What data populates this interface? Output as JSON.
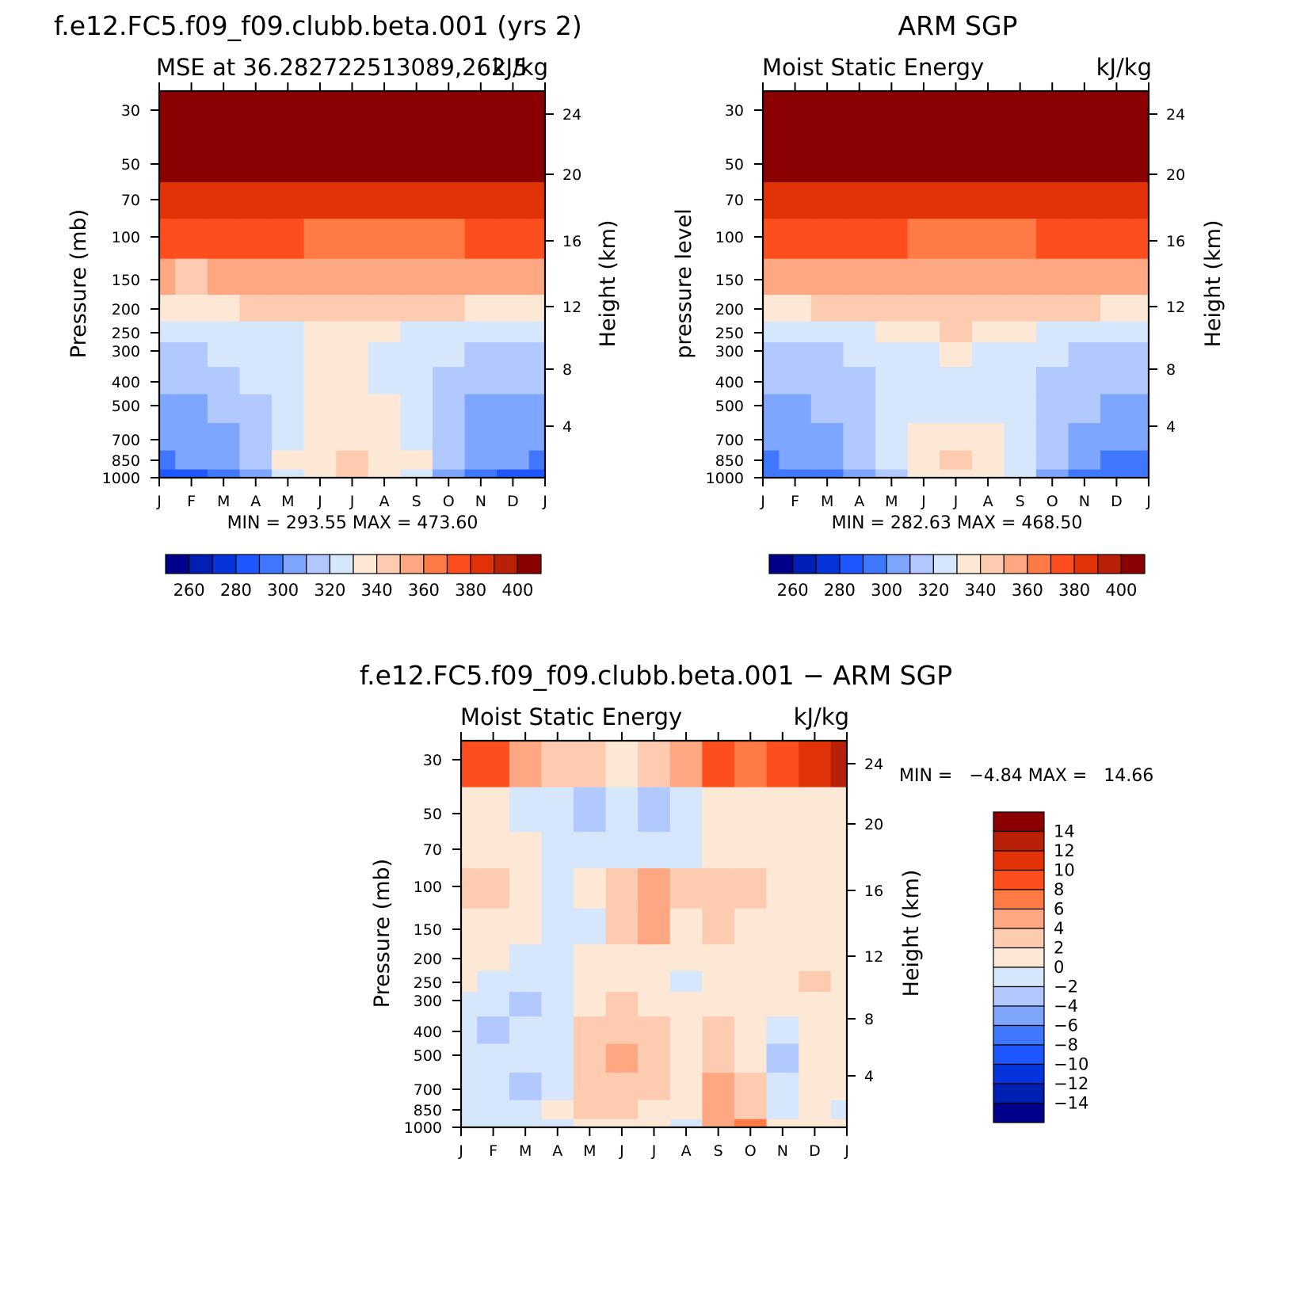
{
  "chart_data": [
    {
      "type": "heatmap",
      "panel": "model",
      "title": "f.e12.FC5.f09_f09.clubb.beta.001 (yrs 2)",
      "subtitle": "MSE at 36.282722513089,262.5",
      "units": "kJ/kg",
      "ylabel": "Pressure (mb)",
      "ylabel_right": "Height (km)",
      "x_ticks": [
        "J",
        "F",
        "M",
        "A",
        "M",
        "J",
        "J",
        "A",
        "S",
        "O",
        "N",
        "D",
        "J"
      ],
      "y_ticks": [
        "30",
        "50",
        "70",
        "100",
        "150",
        "200",
        "250",
        "300",
        "400",
        "500",
        "700",
        "850",
        "1000"
      ],
      "y_ticks_right": [
        "24",
        "20",
        "16",
        "12",
        "8",
        "4"
      ],
      "stats": "MIN = 293.55 MAX = 473.60",
      "colorbar_labels": [
        "260",
        "280",
        "300",
        "320",
        "340",
        "360",
        "380",
        "400"
      ],
      "pressure_levels": [
        1000,
        850,
        700,
        500,
        400,
        300,
        250,
        200,
        150,
        100,
        70,
        50,
        30
      ],
      "months": [
        "J",
        "F",
        "M",
        "A",
        "M",
        "J",
        "J",
        "A",
        "S",
        "O",
        "N",
        "D",
        "J"
      ],
      "values": [
        [
          280,
          285,
          290,
          300,
          328,
          338,
          342,
          336,
          328,
          304,
          298,
          288,
          282
        ],
        [
          298,
          300,
          302,
          310,
          330,
          338,
          342,
          338,
          332,
          312,
          304,
          300,
          298
        ],
        [
          300,
          304,
          306,
          314,
          328,
          334,
          336,
          334,
          326,
          312,
          306,
          302,
          300
        ],
        [
          306,
          308,
          312,
          318,
          328,
          332,
          334,
          330,
          322,
          312,
          308,
          306,
          304
        ],
        [
          312,
          314,
          316,
          320,
          326,
          332,
          334,
          326,
          320,
          316,
          314,
          312,
          310
        ],
        [
          318,
          318,
          320,
          322,
          326,
          332,
          336,
          328,
          322,
          320,
          318,
          318,
          318
        ],
        [
          323,
          322,
          322,
          324,
          328,
          334,
          338,
          332,
          326,
          324,
          322,
          322,
          322
        ],
        [
          335,
          334,
          338,
          340,
          340,
          344,
          348,
          346,
          340,
          340,
          338,
          336,
          336
        ],
        [
          350,
          348,
          352,
          354,
          352,
          352,
          356,
          354,
          350,
          350,
          350,
          350,
          350
        ],
        [
          370,
          370,
          370,
          370,
          370,
          368,
          368,
          368,
          368,
          368,
          370,
          370,
          370
        ],
        [
          386,
          386,
          386,
          386,
          386,
          385,
          384,
          385,
          386,
          386,
          386,
          386,
          386
        ],
        [
          430,
          430,
          430,
          430,
          430,
          430,
          430,
          430,
          430,
          430,
          430,
          430,
          430
        ],
        [
          470,
          470,
          470,
          470,
          470,
          470,
          470,
          470,
          470,
          470,
          470,
          470,
          470
        ]
      ]
    },
    {
      "type": "heatmap",
      "panel": "obs",
      "title": "ARM SGP",
      "subtitle": "Moist Static Energy",
      "units": "kJ/kg",
      "ylabel": "pressure level",
      "ylabel_right": "Height (km)",
      "x_ticks": [
        "J",
        "F",
        "M",
        "A",
        "M",
        "J",
        "J",
        "A",
        "S",
        "O",
        "N",
        "D",
        "J"
      ],
      "y_ticks": [
        "30",
        "50",
        "70",
        "100",
        "150",
        "200",
        "250",
        "300",
        "400",
        "500",
        "700",
        "850",
        "1000"
      ],
      "y_ticks_right": [
        "24",
        "20",
        "16",
        "12",
        "8",
        "4"
      ],
      "stats": "MIN = 282.63 MAX = 468.50",
      "colorbar_labels": [
        "260",
        "280",
        "300",
        "320",
        "340",
        "360",
        "380",
        "400"
      ],
      "pressure_levels": [
        1000,
        850,
        700,
        500,
        400,
        300,
        250,
        200,
        150,
        100,
        70,
        50,
        30
      ],
      "months": [
        "J",
        "F",
        "M",
        "A",
        "M",
        "J",
        "J",
        "A",
        "S",
        "O",
        "N",
        "D",
        "J"
      ],
      "values": [
        [
          292,
          294,
          298,
          304,
          318,
          330,
          338,
          334,
          322,
          304,
          296,
          292,
          290
        ],
        [
          298,
          300,
          304,
          310,
          322,
          336,
          344,
          338,
          326,
          312,
          302,
          298,
          296
        ],
        [
          302,
          304,
          306,
          312,
          322,
          330,
          336,
          332,
          324,
          314,
          306,
          302,
          300
        ],
        [
          306,
          308,
          310,
          314,
          320,
          324,
          322,
          322,
          320,
          316,
          310,
          306,
          304
        ],
        [
          312,
          312,
          314,
          316,
          320,
          324,
          326,
          324,
          320,
          318,
          314,
          312,
          310
        ],
        [
          318,
          318,
          318,
          320,
          322,
          326,
          330,
          326,
          322,
          320,
          318,
          318,
          318
        ],
        [
          324,
          324,
          324,
          326,
          330,
          336,
          342,
          338,
          332,
          328,
          326,
          326,
          324
        ],
        [
          335,
          336,
          340,
          342,
          344,
          346,
          348,
          346,
          344,
          342,
          340,
          338,
          336
        ],
        [
          350,
          352,
          354,
          356,
          356,
          356,
          356,
          356,
          354,
          354,
          352,
          350,
          350
        ],
        [
          370,
          370,
          370,
          370,
          370,
          369,
          368,
          368,
          369,
          370,
          370,
          370,
          370
        ],
        [
          386,
          386,
          386,
          385,
          385,
          384,
          384,
          384,
          385,
          386,
          386,
          386,
          386
        ],
        [
          430,
          430,
          430,
          430,
          430,
          430,
          430,
          430,
          430,
          430,
          430,
          430,
          430
        ],
        [
          468,
          468,
          468,
          468,
          468,
          468,
          468,
          468,
          468,
          468,
          468,
          468,
          468
        ]
      ]
    },
    {
      "type": "heatmap",
      "panel": "diff",
      "title": "f.e12.FC5.f09_f09.clubb.beta.001 − ARM SGP",
      "subtitle": "Moist Static Energy",
      "units": "kJ/kg",
      "ylabel": "Pressure (mb)",
      "ylabel_right": "Height (km)",
      "x_ticks": [
        "J",
        "F",
        "M",
        "A",
        "M",
        "J",
        "J",
        "A",
        "S",
        "O",
        "N",
        "D",
        "J"
      ],
      "y_ticks": [
        "30",
        "50",
        "70",
        "100",
        "150",
        "200",
        "250",
        "300",
        "400",
        "500",
        "700",
        "850",
        "1000"
      ],
      "y_ticks_right": [
        "24",
        "20",
        "16",
        "12",
        "8",
        "4"
      ],
      "stats": "MIN =   −4.84 MAX =   14.66",
      "colorbar_labels": [
        "14",
        "12",
        "10",
        "8",
        "6",
        "4",
        "2",
        "0",
        "−2",
        "−4",
        "−6",
        "−8",
        "−10",
        "−12",
        "−14"
      ],
      "pressure_levels": [
        1000,
        850,
        700,
        500,
        400,
        300,
        250,
        200,
        150,
        100,
        70,
        50,
        30
      ],
      "months": [
        "J",
        "F",
        "M",
        "A",
        "M",
        "J",
        "J",
        "A",
        "S",
        "O",
        "N",
        "D",
        "J"
      ],
      "values": [
        [
          -1,
          -1,
          -1,
          -1,
          1,
          1,
          0,
          -1,
          5,
          6,
          0,
          1,
          0
        ],
        [
          -1,
          -1,
          -1,
          0,
          2,
          2,
          1,
          1,
          4,
          3,
          -1,
          0,
          -1
        ],
        [
          -1,
          -2,
          -3,
          -1,
          3,
          3,
          3,
          0,
          4,
          2,
          -1,
          0,
          0
        ],
        [
          -1,
          -2,
          -2,
          -1,
          3,
          4,
          2,
          0,
          2,
          1,
          -3,
          0,
          0
        ],
        [
          -2,
          -3,
          -2,
          -1,
          2,
          3,
          2,
          0,
          2,
          0,
          -2,
          0,
          0
        ],
        [
          -2,
          -2,
          -3,
          -1,
          1,
          2,
          1,
          0,
          1,
          1,
          0,
          1,
          0
        ],
        [
          0,
          -1,
          -2,
          -1,
          0,
          1,
          0,
          -1,
          0,
          1,
          0,
          2,
          0
        ],
        [
          0,
          0,
          -1,
          -2,
          0,
          1,
          0,
          0,
          0,
          1,
          1,
          0,
          0
        ],
        [
          1,
          1,
          0,
          -2,
          -1,
          3,
          4,
          0,
          2,
          1,
          0,
          0,
          0
        ],
        [
          2,
          3,
          0,
          -1,
          0,
          2,
          4,
          2,
          2,
          3,
          1,
          0,
          0
        ],
        [
          1,
          1,
          0,
          -1,
          -2,
          -1,
          -1,
          -1,
          1,
          1,
          1,
          1,
          1
        ],
        [
          0,
          0,
          -1,
          -2,
          -3,
          -2,
          -3,
          -1,
          0,
          1,
          1,
          0,
          1
        ],
        [
          9,
          8,
          5,
          2,
          2,
          1,
          2,
          5,
          8,
          6,
          8,
          10,
          12
        ]
      ]
    }
  ],
  "colors": {
    "mse_palette": [
      "#00008b",
      "#0020b4",
      "#0534dc",
      "#1e57ff",
      "#3f78ff",
      "#7ea6ff",
      "#b1c9ff",
      "#d6e6fb",
      "#fde8d6",
      "#fdcbb0",
      "#fda882",
      "#ff7a45",
      "#ff4e1e",
      "#e23308",
      "#b82008",
      "#8b0000"
    ],
    "diff_palette": [
      "#00008b",
      "#0020b4",
      "#0534dc",
      "#1e57ff",
      "#3f78ff",
      "#7ea6ff",
      "#b1c9ff",
      "#d6e6fb",
      "#fde8d6",
      "#fdcbb0",
      "#fda882",
      "#ff7a45",
      "#ff4e1e",
      "#e23308",
      "#b82008",
      "#8b0000"
    ]
  }
}
